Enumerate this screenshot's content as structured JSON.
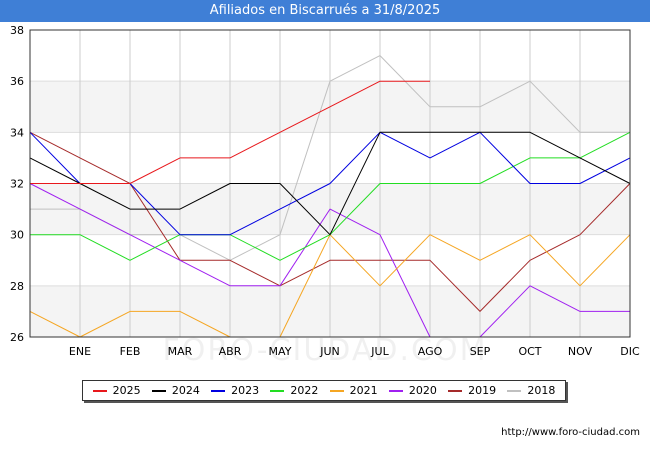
{
  "header": {
    "title": "Afiliados en Biscarrués a 31/8/2025"
  },
  "footer": {
    "url": "http://www.foro-ciudad.com",
    "watermark": "FORO-CIUDAD.COM"
  },
  "chart_data": {
    "type": "line",
    "title": "Afiliados en Biscarrués a 31/8/2025",
    "categories": [
      "",
      "ENE",
      "FEB",
      "MAR",
      "ABR",
      "MAY",
      "JUN",
      "JUL",
      "AGO",
      "SEP",
      "OCT",
      "NOV",
      "DIC"
    ],
    "ylim": [
      26,
      38
    ],
    "yticks": [
      26,
      28,
      30,
      32,
      34,
      36,
      38
    ],
    "grid": true,
    "legend_position": "bottom",
    "series": [
      {
        "name": "2025",
        "color": "#e8181c",
        "values": [
          32,
          32,
          32,
          33,
          33,
          34,
          35,
          36,
          36,
          null,
          null,
          null,
          null
        ]
      },
      {
        "name": "2024",
        "color": "#000000",
        "values": [
          33,
          32,
          31,
          31,
          32,
          32,
          30,
          34,
          34,
          34,
          34,
          33,
          32
        ]
      },
      {
        "name": "2023",
        "color": "#0000e0",
        "values": [
          34,
          32,
          32,
          30,
          30,
          31,
          32,
          34,
          33,
          34,
          32,
          32,
          33
        ]
      },
      {
        "name": "2022",
        "color": "#22dd22",
        "values": [
          30,
          30,
          29,
          30,
          30,
          29,
          30,
          32,
          32,
          32,
          33,
          33,
          34
        ]
      },
      {
        "name": "2021",
        "color": "#f5a623",
        "values": [
          27,
          26,
          27,
          27,
          26,
          26,
          30,
          28,
          30,
          29,
          30,
          28,
          30
        ]
      },
      {
        "name": "2020",
        "color": "#a020f0",
        "values": [
          32,
          31,
          30,
          29,
          28,
          28,
          31,
          30,
          26,
          26,
          28,
          27,
          27
        ]
      },
      {
        "name": "2019",
        "color": "#a52a2a",
        "values": [
          34,
          33,
          32,
          29,
          29,
          28,
          29,
          29,
          29,
          27,
          29,
          30,
          32
        ]
      },
      {
        "name": "2018",
        "color": "#c0c0c0",
        "values": [
          31,
          31,
          30,
          30,
          29,
          30,
          36,
          37,
          35,
          35,
          36,
          34,
          34
        ]
      }
    ]
  }
}
